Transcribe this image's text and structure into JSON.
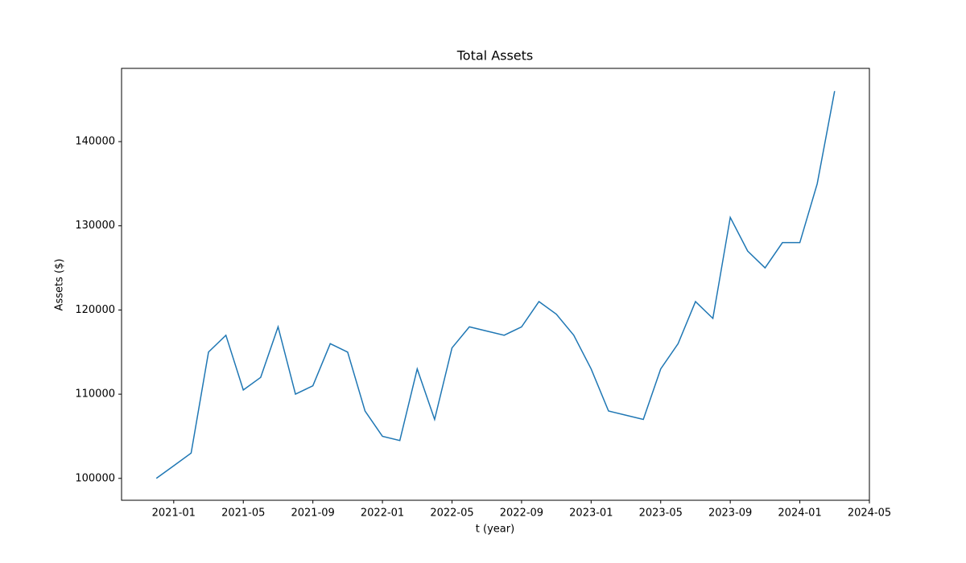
{
  "chart_data": {
    "type": "line",
    "title": "Total Assets",
    "x_label": "t (year)",
    "y_label": "Assets ($)",
    "x": [
      "2020-12",
      "2021-01",
      "2021-02",
      "2021-03",
      "2021-04",
      "2021-05",
      "2021-06",
      "2021-07",
      "2021-08",
      "2021-09",
      "2021-10",
      "2021-11",
      "2021-12",
      "2022-01",
      "2022-02",
      "2022-03",
      "2022-04",
      "2022-05",
      "2022-06",
      "2022-07",
      "2022-08",
      "2022-09",
      "2022-10",
      "2022-11",
      "2022-12",
      "2023-01",
      "2023-02",
      "2023-03",
      "2023-04",
      "2023-05",
      "2023-06",
      "2023-07",
      "2023-08",
      "2023-09",
      "2023-10",
      "2023-11",
      "2023-12",
      "2024-01",
      "2024-02",
      "2024-03"
    ],
    "series": [
      {
        "name": "Total Assets",
        "color": "#1f77b4",
        "values": [
          100000,
          101500,
          103000,
          115000,
          117000,
          110500,
          112000,
          118000,
          110000,
          111000,
          116000,
          115000,
          108000,
          105000,
          104500,
          113000,
          107000,
          115500,
          118000,
          117500,
          117000,
          118000,
          121000,
          119500,
          117000,
          113000,
          108000,
          107500,
          107000,
          113000,
          116000,
          121000,
          119000,
          131000,
          127000,
          125000,
          128000,
          128000,
          135000,
          146000
        ]
      }
    ],
    "xlim": [
      "2020-10",
      "2024-05"
    ],
    "xticks": [
      "2021-01",
      "2021-05",
      "2021-09",
      "2022-01",
      "2022-05",
      "2022-09",
      "2023-01",
      "2023-05",
      "2023-09",
      "2024-01",
      "2024-05"
    ],
    "ylim": [
      97400,
      148700
    ],
    "yticks": [
      100000,
      110000,
      120000,
      130000,
      140000
    ]
  }
}
